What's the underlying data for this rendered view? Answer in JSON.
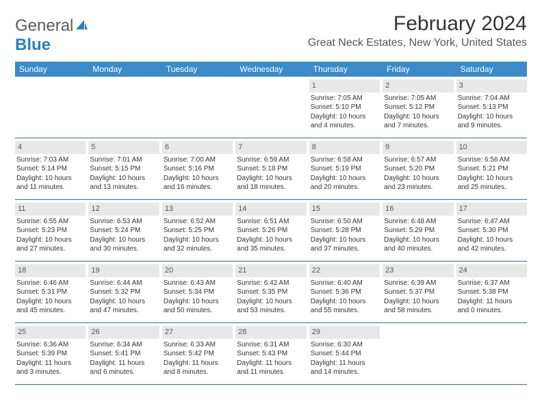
{
  "logo": {
    "text_gray": "General",
    "text_blue": "Blue",
    "sail_color": "#2d7fc1"
  },
  "header": {
    "month_title": "February 2024",
    "location": "Great Neck Estates, New York, United States"
  },
  "colors": {
    "header_bg": "#3a8bc9",
    "header_text": "#ffffff",
    "daynum_bg": "#e8e8e8",
    "border": "#3a6a9a",
    "body_text": "#333333"
  },
  "weekdays": [
    "Sunday",
    "Monday",
    "Tuesday",
    "Wednesday",
    "Thursday",
    "Friday",
    "Saturday"
  ],
  "weeks": [
    [
      null,
      null,
      null,
      null,
      {
        "n": "1",
        "sunrise": "Sunrise: 7:05 AM",
        "sunset": "Sunset: 5:10 PM",
        "day1": "Daylight: 10 hours",
        "day2": "and 4 minutes."
      },
      {
        "n": "2",
        "sunrise": "Sunrise: 7:05 AM",
        "sunset": "Sunset: 5:12 PM",
        "day1": "Daylight: 10 hours",
        "day2": "and 7 minutes."
      },
      {
        "n": "3",
        "sunrise": "Sunrise: 7:04 AM",
        "sunset": "Sunset: 5:13 PM",
        "day1": "Daylight: 10 hours",
        "day2": "and 9 minutes."
      }
    ],
    [
      {
        "n": "4",
        "sunrise": "Sunrise: 7:03 AM",
        "sunset": "Sunset: 5:14 PM",
        "day1": "Daylight: 10 hours",
        "day2": "and 11 minutes."
      },
      {
        "n": "5",
        "sunrise": "Sunrise: 7:01 AM",
        "sunset": "Sunset: 5:15 PM",
        "day1": "Daylight: 10 hours",
        "day2": "and 13 minutes."
      },
      {
        "n": "6",
        "sunrise": "Sunrise: 7:00 AM",
        "sunset": "Sunset: 5:16 PM",
        "day1": "Daylight: 10 hours",
        "day2": "and 16 minutes."
      },
      {
        "n": "7",
        "sunrise": "Sunrise: 6:59 AM",
        "sunset": "Sunset: 5:18 PM",
        "day1": "Daylight: 10 hours",
        "day2": "and 18 minutes."
      },
      {
        "n": "8",
        "sunrise": "Sunrise: 6:58 AM",
        "sunset": "Sunset: 5:19 PM",
        "day1": "Daylight: 10 hours",
        "day2": "and 20 minutes."
      },
      {
        "n": "9",
        "sunrise": "Sunrise: 6:57 AM",
        "sunset": "Sunset: 5:20 PM",
        "day1": "Daylight: 10 hours",
        "day2": "and 23 minutes."
      },
      {
        "n": "10",
        "sunrise": "Sunrise: 6:56 AM",
        "sunset": "Sunset: 5:21 PM",
        "day1": "Daylight: 10 hours",
        "day2": "and 25 minutes."
      }
    ],
    [
      {
        "n": "11",
        "sunrise": "Sunrise: 6:55 AM",
        "sunset": "Sunset: 5:23 PM",
        "day1": "Daylight: 10 hours",
        "day2": "and 27 minutes."
      },
      {
        "n": "12",
        "sunrise": "Sunrise: 6:53 AM",
        "sunset": "Sunset: 5:24 PM",
        "day1": "Daylight: 10 hours",
        "day2": "and 30 minutes."
      },
      {
        "n": "13",
        "sunrise": "Sunrise: 6:52 AM",
        "sunset": "Sunset: 5:25 PM",
        "day1": "Daylight: 10 hours",
        "day2": "and 32 minutes."
      },
      {
        "n": "14",
        "sunrise": "Sunrise: 6:51 AM",
        "sunset": "Sunset: 5:26 PM",
        "day1": "Daylight: 10 hours",
        "day2": "and 35 minutes."
      },
      {
        "n": "15",
        "sunrise": "Sunrise: 6:50 AM",
        "sunset": "Sunset: 5:28 PM",
        "day1": "Daylight: 10 hours",
        "day2": "and 37 minutes."
      },
      {
        "n": "16",
        "sunrise": "Sunrise: 6:48 AM",
        "sunset": "Sunset: 5:29 PM",
        "day1": "Daylight: 10 hours",
        "day2": "and 40 minutes."
      },
      {
        "n": "17",
        "sunrise": "Sunrise: 6:47 AM",
        "sunset": "Sunset: 5:30 PM",
        "day1": "Daylight: 10 hours",
        "day2": "and 42 minutes."
      }
    ],
    [
      {
        "n": "18",
        "sunrise": "Sunrise: 6:46 AM",
        "sunset": "Sunset: 5:31 PM",
        "day1": "Daylight: 10 hours",
        "day2": "and 45 minutes."
      },
      {
        "n": "19",
        "sunrise": "Sunrise: 6:44 AM",
        "sunset": "Sunset: 5:32 PM",
        "day1": "Daylight: 10 hours",
        "day2": "and 47 minutes."
      },
      {
        "n": "20",
        "sunrise": "Sunrise: 6:43 AM",
        "sunset": "Sunset: 5:34 PM",
        "day1": "Daylight: 10 hours",
        "day2": "and 50 minutes."
      },
      {
        "n": "21",
        "sunrise": "Sunrise: 6:42 AM",
        "sunset": "Sunset: 5:35 PM",
        "day1": "Daylight: 10 hours",
        "day2": "and 53 minutes."
      },
      {
        "n": "22",
        "sunrise": "Sunrise: 6:40 AM",
        "sunset": "Sunset: 5:36 PM",
        "day1": "Daylight: 10 hours",
        "day2": "and 55 minutes."
      },
      {
        "n": "23",
        "sunrise": "Sunrise: 6:39 AM",
        "sunset": "Sunset: 5:37 PM",
        "day1": "Daylight: 10 hours",
        "day2": "and 58 minutes."
      },
      {
        "n": "24",
        "sunrise": "Sunrise: 6:37 AM",
        "sunset": "Sunset: 5:38 PM",
        "day1": "Daylight: 11 hours",
        "day2": "and 0 minutes."
      }
    ],
    [
      {
        "n": "25",
        "sunrise": "Sunrise: 6:36 AM",
        "sunset": "Sunset: 5:39 PM",
        "day1": "Daylight: 11 hours",
        "day2": "and 3 minutes."
      },
      {
        "n": "26",
        "sunrise": "Sunrise: 6:34 AM",
        "sunset": "Sunset: 5:41 PM",
        "day1": "Daylight: 11 hours",
        "day2": "and 6 minutes."
      },
      {
        "n": "27",
        "sunrise": "Sunrise: 6:33 AM",
        "sunset": "Sunset: 5:42 PM",
        "day1": "Daylight: 11 hours",
        "day2": "and 8 minutes."
      },
      {
        "n": "28",
        "sunrise": "Sunrise: 6:31 AM",
        "sunset": "Sunset: 5:43 PM",
        "day1": "Daylight: 11 hours",
        "day2": "and 11 minutes."
      },
      {
        "n": "29",
        "sunrise": "Sunrise: 6:30 AM",
        "sunset": "Sunset: 5:44 PM",
        "day1": "Daylight: 11 hours",
        "day2": "and 14 minutes."
      },
      null,
      null
    ]
  ]
}
